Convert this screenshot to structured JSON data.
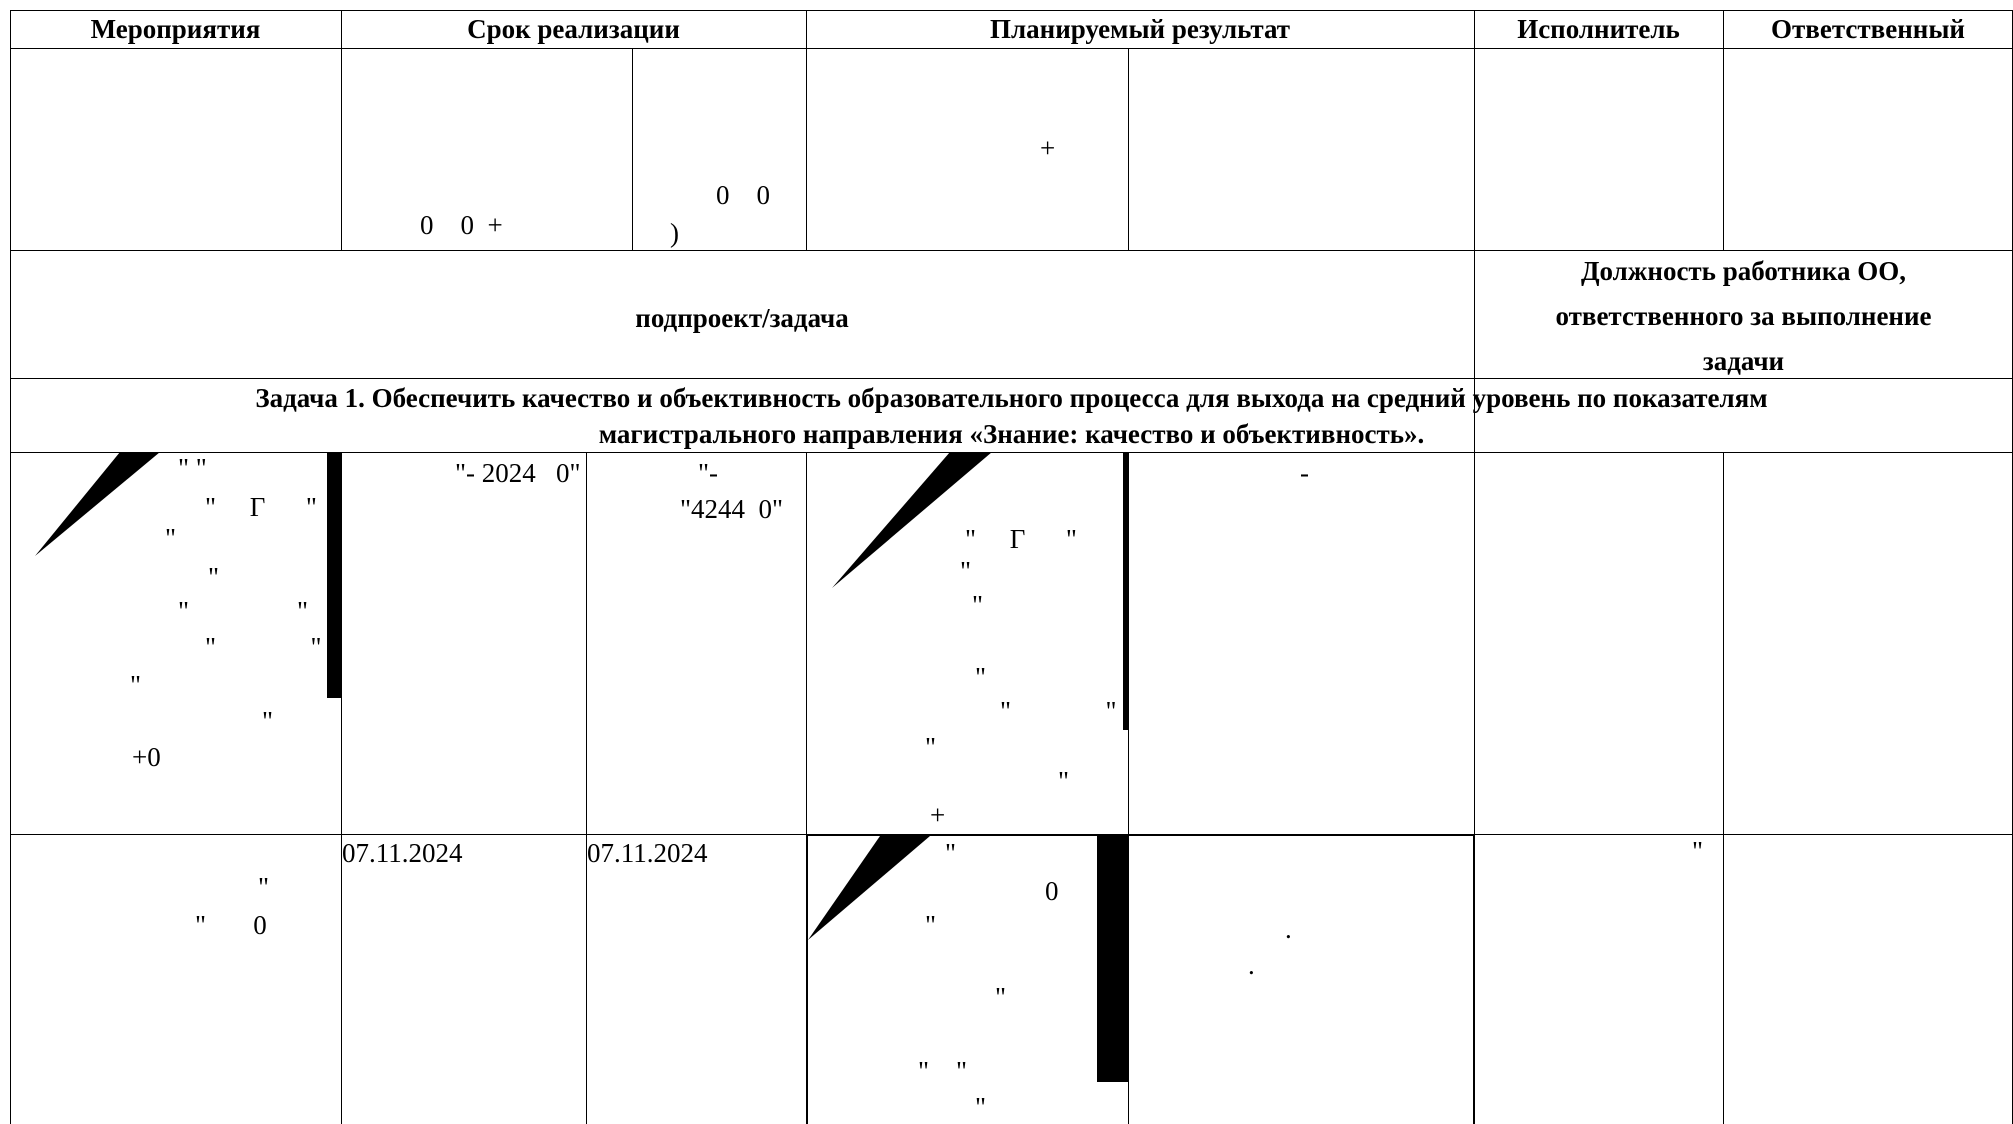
{
  "header": {
    "col_activities": "Мероприятия",
    "col_deadline": "Срок реализации",
    "col_planned_result": "Планируемый результат",
    "col_executor": "Исполнитель",
    "col_responsible": "Ответственный"
  },
  "subheader": {
    "subproject_task": "подпроект/задача",
    "position_line1": "Должность работника ОО,",
    "position_line2": "ответственного за выполнение",
    "position_line3": "задачи"
  },
  "task1": {
    "line1": "Задача 1. Обеспечить качество и объективность образовательного процесса для выхода на средний уровень по показателям",
    "line2": "магистрального направления «Знание: качество и объективность»."
  },
  "row_top_fragments": {
    "start_fragment": "0    0  +",
    "end_fragment_1": "0    0",
    "end_fragment_2": ")",
    "result_fragment": "+"
  },
  "row1": {
    "act": [
      "\" \"",
      "\"     Г      \"",
      "\"",
      "\"",
      "\"                \"",
      "\"              \"",
      "\"",
      "\"",
      "+0"
    ],
    "start": "\"- 2024   0\"",
    "end_1": "\"-",
    "end_2": "\"4244  0\"",
    "res": [
      "\"",
      "\"     Г      \"",
      "\"",
      "\"",
      "\"",
      "\"              \"",
      "\"",
      "\"",
      "+"
    ],
    "res2": "-"
  },
  "row2": {
    "act": [
      "\"",
      "\"       0"
    ],
    "start": "07.11.2024",
    "end": "07.11.2024",
    "res": [
      "\"",
      "0",
      "\"",
      "\"",
      "\"    \"",
      "\""
    ],
    "res2": [
      ".",
      "."
    ],
    "executor": "\""
  }
}
